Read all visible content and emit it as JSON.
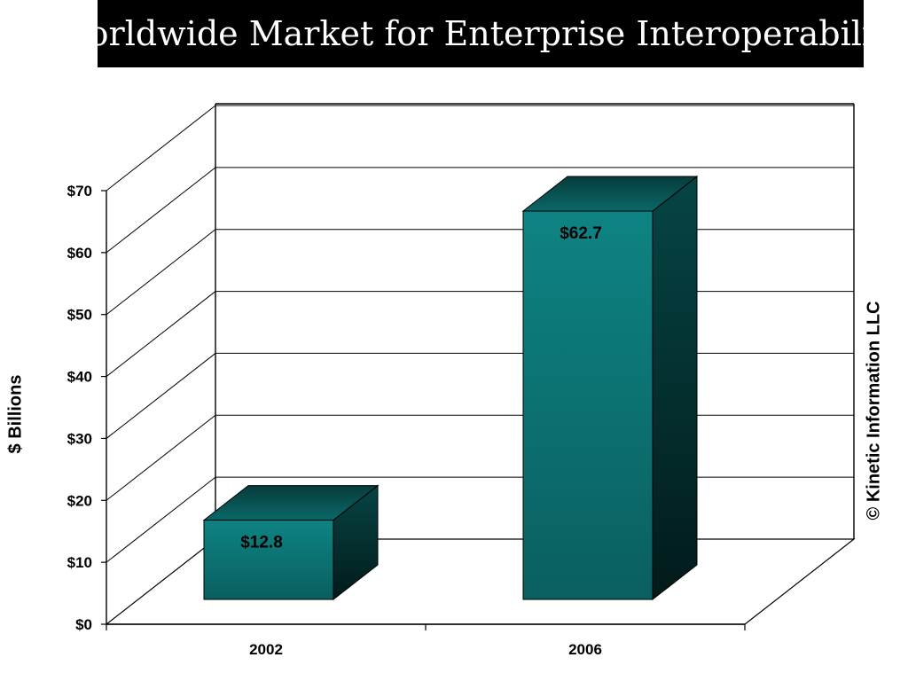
{
  "header": {
    "title": "Worldwide Market for Enterprise Interoperability"
  },
  "copyright": "© Kinetic Information LLC",
  "chart_data": {
    "type": "bar",
    "title": "Worldwide Market for Enterprise Interoperability",
    "xlabel": "",
    "ylabel": "$ Billions",
    "categories": [
      "2002",
      "2006"
    ],
    "values": [
      12.8,
      62.7
    ],
    "data_labels": [
      "$12.8",
      "$62.7"
    ],
    "ylim": [
      0,
      70
    ],
    "yticks": [
      0,
      10,
      20,
      30,
      40,
      50,
      60,
      70
    ],
    "ytick_labels": [
      "$0",
      "$10",
      "$20",
      "$30",
      "$40",
      "$50",
      "$60",
      "$70"
    ],
    "grid": true,
    "three_d": true,
    "bar_color": "#0e8383"
  }
}
